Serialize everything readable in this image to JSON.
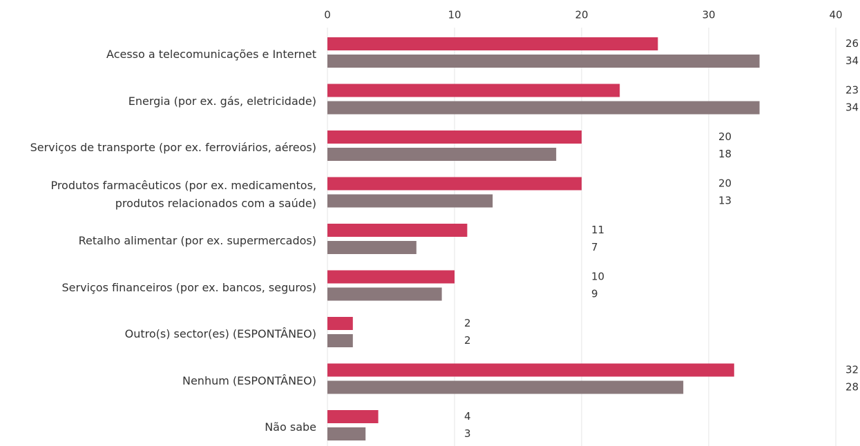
{
  "chart_data": {
    "type": "hbar",
    "categories": [
      "Acesso a telecomunicações e Internet",
      "Energia (por ex. gás, eletricidade)",
      "Serviços de transporte (por ex. ferroviários, aéreos)",
      "Produtos farmacêuticos (por ex. medicamentos,\nprodutos relacionados com a saúde)",
      "Retalho alimentar (por ex. supermercados)",
      "Serviços financeiros (por ex. bancos, seguros)",
      "Outro(s) sector(es) (ESPONTÂNEO)",
      "Nenhum (ESPONTÂNEO)",
      "Não sabe"
    ],
    "series": [
      {
        "color": "#d0365a",
        "values": [
          26,
          23,
          20,
          20,
          11,
          10,
          2,
          32,
          4
        ]
      },
      {
        "color": "#8a787b",
        "values": [
          34,
          34,
          18,
          13,
          7,
          9,
          2,
          28,
          3
        ]
      }
    ],
    "xlim": [
      0,
      40
    ],
    "xticks": [
      0,
      10,
      20,
      30,
      40
    ],
    "grid": true
  }
}
